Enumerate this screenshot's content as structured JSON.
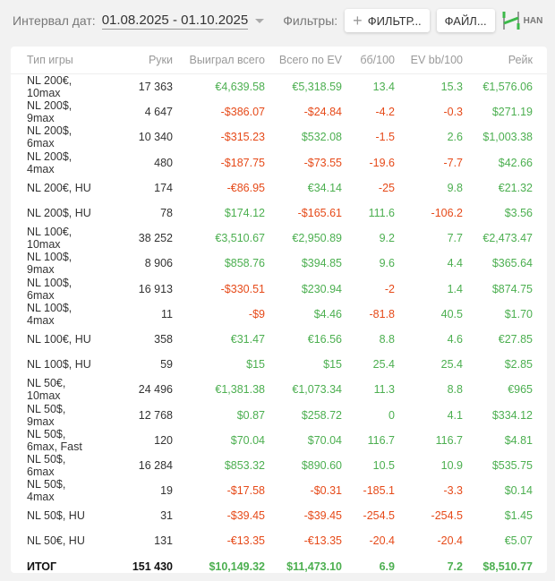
{
  "toolbar": {
    "date_label": "Интервал дат:",
    "date_range": "01.08.2025 - 01.10.2025",
    "filters_label": "Фильтры:",
    "filter_button": "ФИЛЬТР...",
    "file_button": "ФАЙЛ...",
    "logo_text": "HAN"
  },
  "table": {
    "headers": [
      "Тип игры",
      "Руки",
      "Выиграл всего",
      "Всего по EV",
      "бб/100",
      "EV bb/100",
      "Рейк"
    ],
    "rows": [
      [
        "NL 200€, 10max",
        "17 363",
        "€4,639.58",
        "€5,318.59",
        "13.4",
        "15.3",
        "€1,576.06"
      ],
      [
        "NL 200$, 9max",
        "4 647",
        "-$386.07",
        "-$24.84",
        "-4.2",
        "-0.3",
        "$271.19"
      ],
      [
        "NL 200$, 6max",
        "10 340",
        "-$315.23",
        "$532.08",
        "-1.5",
        "2.6",
        "$1,003.38"
      ],
      [
        "NL 200$, 4max",
        "480",
        "-$187.75",
        "-$73.55",
        "-19.6",
        "-7.7",
        "$42.66"
      ],
      [
        "NL 200€, HU",
        "174",
        "-€86.95",
        "€34.14",
        "-25",
        "9.8",
        "€21.32"
      ],
      [
        "NL 200$, HU",
        "78",
        "$174.12",
        "-$165.61",
        "111.6",
        "-106.2",
        "$3.56"
      ],
      [
        "NL 100€, 10max",
        "38 252",
        "€3,510.67",
        "€2,950.89",
        "9.2",
        "7.7",
        "€2,473.47"
      ],
      [
        "NL 100$, 9max",
        "8 906",
        "$858.76",
        "$394.85",
        "9.6",
        "4.4",
        "$365.64"
      ],
      [
        "NL 100$, 6max",
        "16 913",
        "-$330.51",
        "$230.94",
        "-2",
        "1.4",
        "$874.75"
      ],
      [
        "NL 100$, 4max",
        "11",
        "-$9",
        "$4.46",
        "-81.8",
        "40.5",
        "$1.70"
      ],
      [
        "NL 100€, HU",
        "358",
        "€31.47",
        "€16.56",
        "8.8",
        "4.6",
        "€27.85"
      ],
      [
        "NL 100$, HU",
        "59",
        "$15",
        "$15",
        "25.4",
        "25.4",
        "$2.85"
      ],
      [
        "NL 50€, 10max",
        "24 496",
        "€1,381.38",
        "€1,073.34",
        "11.3",
        "8.8",
        "€965"
      ],
      [
        "NL 50$, 9max",
        "12 768",
        "$0.87",
        "$258.72",
        "0",
        "4.1",
        "$334.12"
      ],
      [
        "NL 50$, 6max, Fast",
        "120",
        "$70.04",
        "$70.04",
        "116.7",
        "116.7",
        "$4.81"
      ],
      [
        "NL 50$, 6max",
        "16 284",
        "$853.32",
        "$890.60",
        "10.5",
        "10.9",
        "$535.75"
      ],
      [
        "NL 50$, 4max",
        "19",
        "-$17.58",
        "-$0.31",
        "-185.1",
        "-3.3",
        "$0.14"
      ],
      [
        "NL 50$, HU",
        "31",
        "-$39.45",
        "-$39.45",
        "-254.5",
        "-254.5",
        "$1.45"
      ],
      [
        "NL 50€, HU",
        "131",
        "-€13.35",
        "-€13.35",
        "-20.4",
        "-20.4",
        "€5.07"
      ]
    ],
    "total": [
      "ИТОГ",
      "151 430",
      "$10,149.32",
      "$11,473.10",
      "6.9",
      "7.2",
      "$8,510.77"
    ]
  },
  "colors": {
    "positive": "#4caf50",
    "negative": "#e64a19"
  }
}
